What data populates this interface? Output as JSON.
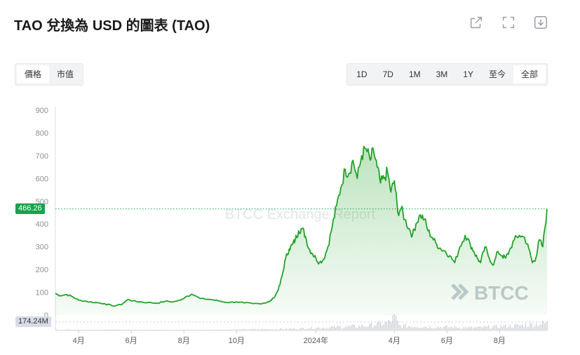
{
  "title": "TAO 兌換為 USD 的圖表 (TAO)",
  "toolbar": {
    "icons": [
      "share-icon",
      "fullscreen-icon",
      "download-icon"
    ]
  },
  "type_tabs": [
    {
      "label": "價格",
      "active": true
    },
    {
      "label": "市值",
      "active": false
    }
  ],
  "range_tabs": [
    {
      "label": "1D",
      "active": false
    },
    {
      "label": "7D",
      "active": false
    },
    {
      "label": "1M",
      "active": false
    },
    {
      "label": "3M",
      "active": false
    },
    {
      "label": "1Y",
      "active": false
    },
    {
      "label": "至今",
      "active": false
    },
    {
      "label": "全部",
      "active": true
    }
  ],
  "current_price_label": "466.26",
  "volume_label": "174.24M",
  "watermark": {
    "center": "BTCC Exchange Report",
    "logo": "BTCC"
  },
  "colors": {
    "line": "#22a32a",
    "badge": "#16a34a",
    "volume": "#c9ccd2"
  },
  "chart_data": {
    "type": "area",
    "title": "",
    "xlabel": "",
    "ylabel": "",
    "ylim": [
      0,
      900
    ],
    "yticks": [
      0,
      100,
      200,
      300,
      400,
      500,
      600,
      700,
      800,
      900
    ],
    "xticks": [
      {
        "label": "4月",
        "x": "2023-04-01"
      },
      {
        "label": "6月",
        "x": "2023-06-01"
      },
      {
        "label": "8月",
        "x": "2023-08-01"
      },
      {
        "label": "10月",
        "x": "2023-10-01"
      },
      {
        "label": "2024年",
        "x": "2024-01-01"
      },
      {
        "label": "4月",
        "x": "2024-04-01"
      },
      {
        "label": "6月",
        "x": "2024-06-01"
      },
      {
        "label": "8月",
        "x": "2024-08-01"
      }
    ],
    "xlim": [
      "2023-03-05",
      "2024-09-25"
    ],
    "current_price": 466.26,
    "series": [
      {
        "x": [
          "2023-03-05",
          "2023-03-10",
          "2023-03-18",
          "2023-03-25",
          "2023-04-01",
          "2023-04-10",
          "2023-04-20",
          "2023-05-01",
          "2023-05-10",
          "2023-05-20",
          "2023-05-28",
          "2023-06-03",
          "2023-06-10",
          "2023-06-20",
          "2023-07-01",
          "2023-07-10",
          "2023-07-20",
          "2023-07-28",
          "2023-08-03",
          "2023-08-10",
          "2023-08-20",
          "2023-09-01",
          "2023-09-10",
          "2023-09-20",
          "2023-10-01",
          "2023-10-10",
          "2023-10-20",
          "2023-10-28",
          "2023-11-01",
          "2023-11-08",
          "2023-11-13",
          "2023-11-17",
          "2023-11-20",
          "2023-11-23",
          "2023-11-27",
          "2023-12-01",
          "2023-12-05",
          "2023-12-08",
          "2023-12-12",
          "2023-12-16",
          "2023-12-20",
          "2023-12-24",
          "2023-12-28",
          "2024-01-01",
          "2024-01-05",
          "2024-01-10",
          "2024-01-15",
          "2024-01-20",
          "2024-01-25",
          "2024-01-30",
          "2024-02-04",
          "2024-02-08",
          "2024-02-13",
          "2024-02-18",
          "2024-02-23",
          "2024-02-28",
          "2024-03-04",
          "2024-03-08",
          "2024-03-12",
          "2024-03-16",
          "2024-03-20",
          "2024-03-24",
          "2024-03-28",
          "2024-04-01",
          "2024-04-05",
          "2024-04-09",
          "2024-04-13",
          "2024-04-18",
          "2024-04-22",
          "2024-04-26",
          "2024-05-01",
          "2024-05-06",
          "2024-05-10",
          "2024-05-15",
          "2024-05-20",
          "2024-05-25",
          "2024-05-30",
          "2024-06-04",
          "2024-06-10",
          "2024-06-16",
          "2024-06-22",
          "2024-06-28",
          "2024-07-02",
          "2024-07-06",
          "2024-07-10",
          "2024-07-15",
          "2024-07-20",
          "2024-07-25",
          "2024-07-30",
          "2024-08-04",
          "2024-08-08",
          "2024-08-12",
          "2024-08-18",
          "2024-08-24",
          "2024-08-30",
          "2024-09-04",
          "2024-09-08",
          "2024-09-12",
          "2024-09-16",
          "2024-09-20",
          "2024-09-25"
        ],
        "values": [
          95,
          85,
          90,
          80,
          65,
          60,
          55,
          50,
          40,
          45,
          68,
          62,
          58,
          55,
          52,
          60,
          58,
          65,
          80,
          92,
          72,
          68,
          62,
          55,
          58,
          53,
          50,
          50,
          52,
          58,
          75,
          100,
          130,
          175,
          250,
          290,
          310,
          330,
          370,
          380,
          345,
          290,
          270,
          250,
          230,
          245,
          300,
          390,
          480,
          560,
          640,
          620,
          680,
          600,
          700,
          730,
          680,
          720,
          650,
          580,
          600,
          630,
          540,
          590,
          450,
          470,
          420,
          380,
          350,
          400,
          440,
          420,
          370,
          340,
          310,
          290,
          280,
          260,
          230,
          300,
          350,
          310,
          280,
          250,
          230,
          300,
          250,
          220,
          280,
          260,
          250,
          280,
          330,
          350,
          340,
          290,
          230,
          250,
          330,
          300,
          466.26
        ]
      }
    ],
    "volume": {
      "label": "174.24M",
      "x": [
        "2023-03-05",
        "2023-06-01",
        "2023-09-01",
        "2023-12-01",
        "2024-01-20",
        "2024-03-01",
        "2024-03-25",
        "2024-04-01",
        "2024-04-06",
        "2024-05-01",
        "2024-06-01",
        "2024-07-01",
        "2024-08-01",
        "2024-08-20",
        "2024-09-25"
      ],
      "values": [
        0.06,
        0.05,
        0.05,
        0.12,
        0.25,
        0.35,
        0.6,
        1.0,
        0.35,
        0.3,
        0.25,
        0.2,
        0.3,
        0.35,
        0.55
      ]
    }
  }
}
